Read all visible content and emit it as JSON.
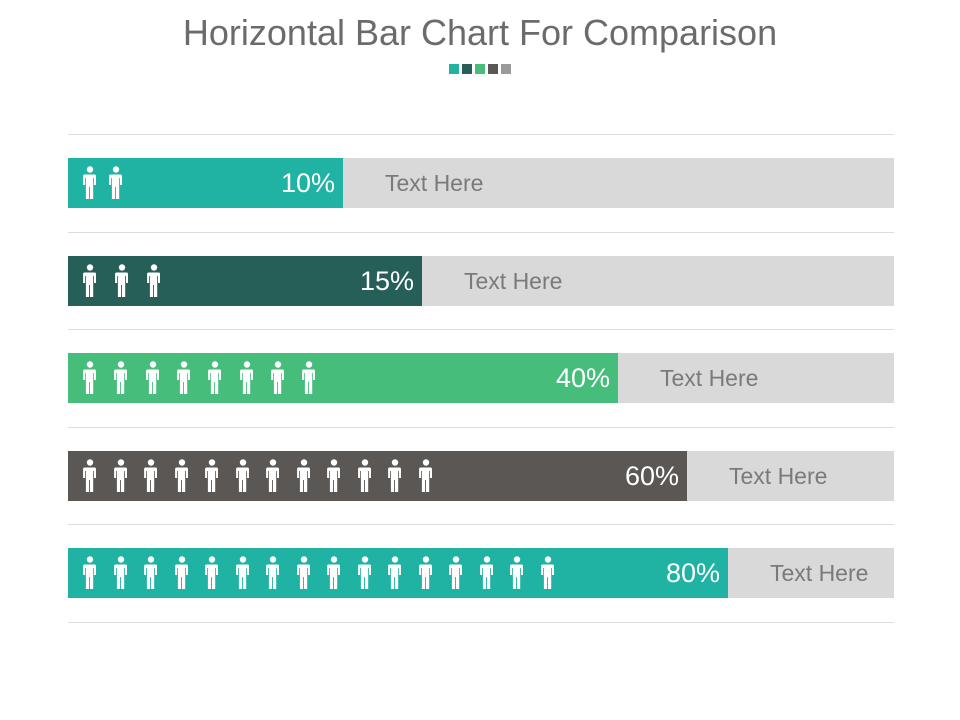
{
  "title": "Horizontal Bar Chart For Comparison",
  "palette": [
    "#20b2a2",
    "#265e58",
    "#47bd7b",
    "#5b5755",
    "#9a9a9a"
  ],
  "chart_data": {
    "type": "bar",
    "orientation": "horizontal",
    "title": "Horizontal Bar Chart For Comparison",
    "xlim": [
      0,
      100
    ],
    "bars": [
      {
        "percent": 10,
        "label": "10%",
        "text": "Text Here",
        "people": 2,
        "color": "#20b2a2"
      },
      {
        "percent": 15,
        "label": "15%",
        "text": "Text Here",
        "people": 3,
        "color": "#265e58"
      },
      {
        "percent": 40,
        "label": "40%",
        "text": "Text Here",
        "people": 8,
        "color": "#47bd7b"
      },
      {
        "percent": 60,
        "label": "60%",
        "text": "Text Here",
        "people": 12,
        "color": "#5b5755"
      },
      {
        "percent": 80,
        "label": "80%",
        "text": "Text Here",
        "people": 16,
        "color": "#20b2a2"
      }
    ],
    "person_icon": "person-icon"
  }
}
